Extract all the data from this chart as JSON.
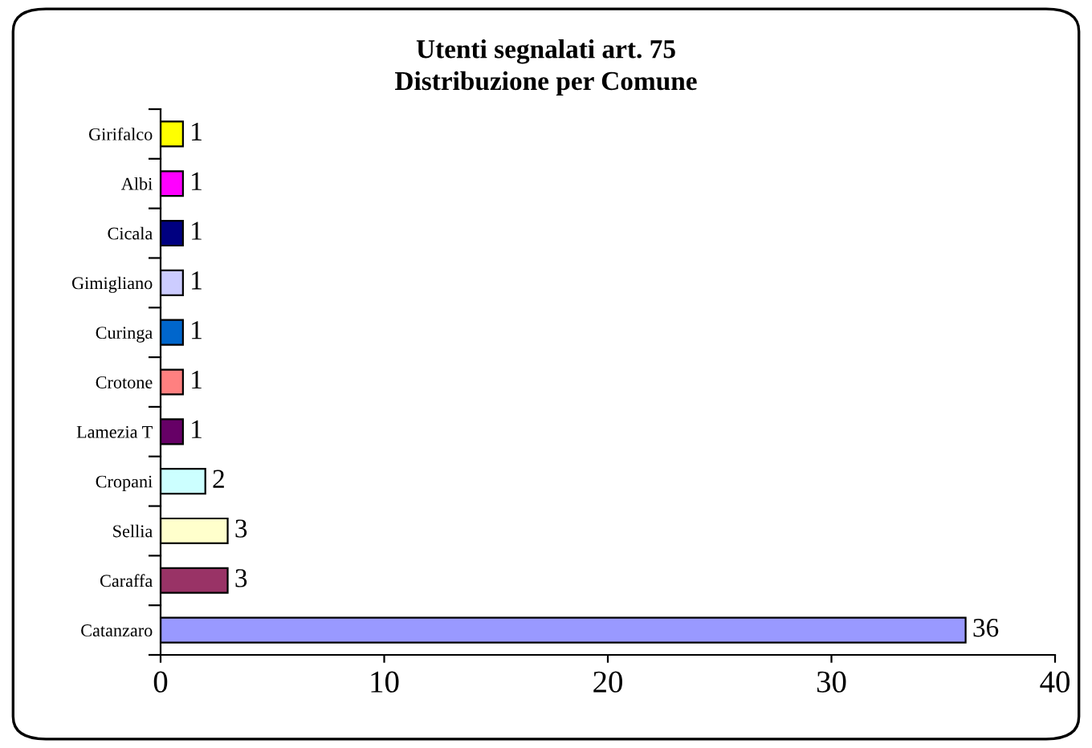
{
  "chart_data": {
    "type": "bar",
    "orientation": "horizontal",
    "title": "Utenti segnalati art. 75\nDistribuzione per Comune",
    "categories": [
      "Girifalco",
      "Albi",
      "Cicala",
      "Gimigliano",
      "Curinga",
      "Crotone",
      "Lamezia T",
      "Cropani",
      "Sellia",
      "Caraffa",
      "Catanzaro"
    ],
    "values": [
      1,
      1,
      1,
      1,
      1,
      1,
      1,
      2,
      3,
      3,
      36
    ],
    "colors": [
      "#ffff00",
      "#ff00ff",
      "#000080",
      "#ccccff",
      "#0066cc",
      "#ff8080",
      "#660066",
      "#ccffff",
      "#ffffcc",
      "#993366",
      "#9999ff"
    ],
    "xlim": [
      0,
      40
    ],
    "xticks": [
      0,
      10,
      20,
      30,
      40
    ],
    "data_labels": true,
    "grid": false,
    "legend": false
  }
}
